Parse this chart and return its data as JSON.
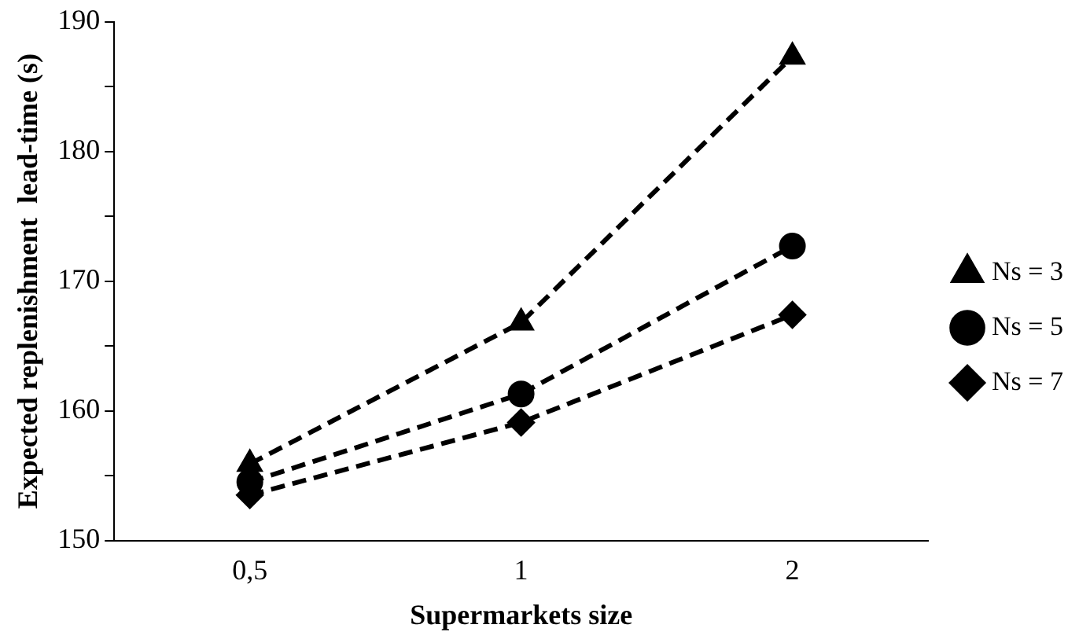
{
  "chart_data": {
    "type": "line",
    "xlabel": "Supermarkets size",
    "ylabel": "Expected replenishment  lead-time (s)",
    "categories": [
      "0,5",
      "1",
      "2"
    ],
    "series": [
      {
        "name": "Ns = 3",
        "color": "#000000",
        "marker": "triangle",
        "values": [
          155.9,
          166.8,
          187.3
        ]
      },
      {
        "name": "Ns = 5",
        "color": "#000000",
        "marker": "circle",
        "values": [
          154.5,
          161.3,
          172.7
        ]
      },
      {
        "name": "Ns = 7",
        "color": "#000000",
        "marker": "diamond",
        "values": [
          153.5,
          159.1,
          167.4
        ]
      }
    ],
    "ylim": [
      150,
      190
    ],
    "yticks": [
      150,
      {
        "value": 155,
        "label": null
      },
      160,
      {
        "value": 165,
        "label": null
      },
      170,
      {
        "value": 175,
        "label": null
      },
      180,
      {
        "value": 185,
        "label": null
      },
      190
    ],
    "grid": false,
    "legend": "right",
    "line_style": "dashed"
  }
}
